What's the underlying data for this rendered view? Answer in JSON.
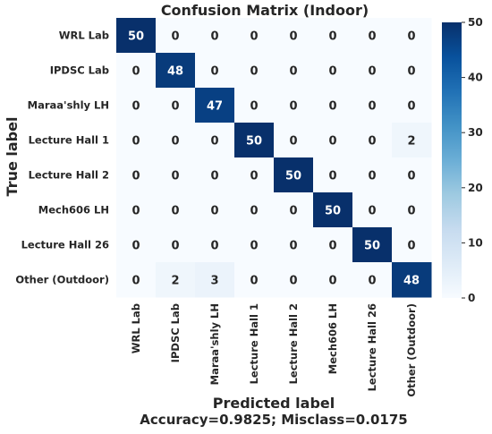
{
  "chart_data": {
    "type": "heatmap",
    "title": "Confusion Matrix (Indoor)",
    "ylabel": "True label",
    "xlabel": "Predicted label",
    "footer": "Accuracy=0.9825; Misclass=0.0175",
    "row_labels": [
      "WRL Lab",
      "IPDSC Lab",
      "Maraa'shly LH",
      "Lecture Hall 1",
      "Lecture Hall 2",
      "Mech606 LH",
      "Lecture Hall 26",
      "Other (Outdoor)"
    ],
    "col_labels": [
      "WRL Lab",
      "IPDSC Lab",
      "Maraa'shly LH",
      "Lecture Hall 1",
      "Lecture Hall 2",
      "Mech606 LH",
      "Lecture Hall 26",
      "Other (Outdoor)"
    ],
    "matrix": [
      [
        50,
        0,
        0,
        0,
        0,
        0,
        0,
        0
      ],
      [
        0,
        48,
        0,
        0,
        0,
        0,
        0,
        0
      ],
      [
        0,
        0,
        47,
        0,
        0,
        0,
        0,
        0
      ],
      [
        0,
        0,
        0,
        50,
        0,
        0,
        0,
        2
      ],
      [
        0,
        0,
        0,
        0,
        50,
        0,
        0,
        0
      ],
      [
        0,
        0,
        0,
        0,
        0,
        50,
        0,
        0
      ],
      [
        0,
        0,
        0,
        0,
        0,
        0,
        50,
        0
      ],
      [
        0,
        2,
        3,
        0,
        0,
        0,
        0,
        48
      ]
    ],
    "colorbar": {
      "min": 0,
      "max": 50,
      "ticks": [
        "0",
        "10",
        "20",
        "30",
        "40",
        "50"
      ],
      "colors": [
        "#f7fbff",
        "#deebf7",
        "#c6dbef",
        "#9ecae1",
        "#6baed6",
        "#4292c6",
        "#2171b5",
        "#08519c",
        "#08306b"
      ]
    },
    "grid": false
  }
}
